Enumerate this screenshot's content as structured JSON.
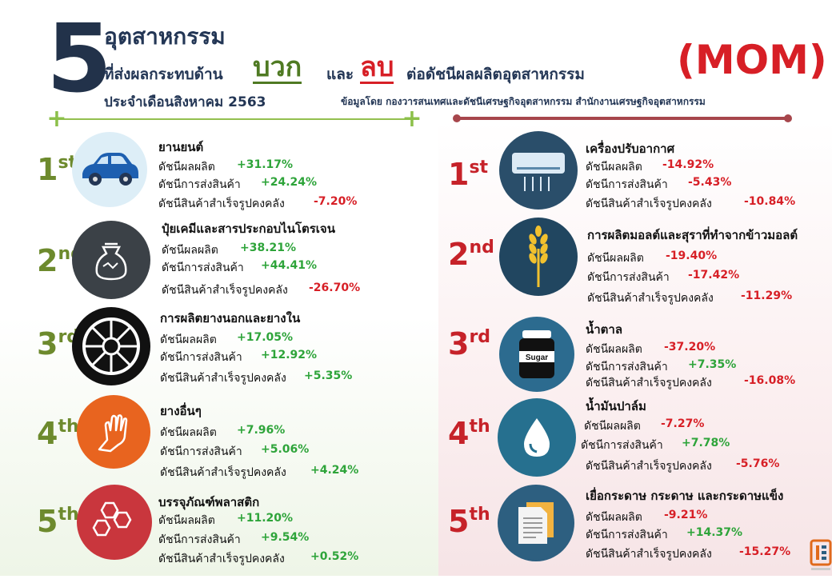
{
  "header": {
    "big_number": "5",
    "title_line1": "อุตสาหกรรม",
    "title_line2a": "ที่ส่งผลกระทบด้าน",
    "positive_word": "บวก",
    "and_word": "และ",
    "negative_word": "ลบ",
    "title_line2b": "ต่อดัชนีผลผลิตอุตสาหกรรม",
    "title_line3": "ประจำเดือนสิงหาคม  2563",
    "mom": "(MOM)",
    "source": "ข้อมูลโดย กองวารสนเทศและดัชนีเศรษฐกิจอุตสาหกรรม สำนักงานเศรษฐกิจอุตสาหกรรม"
  },
  "colors": {
    "positive": "#2ea43a",
    "negative": "#d71f26",
    "navy": "#233655"
  },
  "positive": [
    {
      "rank_num": "1",
      "rank_suffix": "st",
      "name": "ยานยนต์",
      "icon": "car-icon",
      "l1": "ดัชนีผลผลิต",
      "v1": "+31.17%",
      "l2": "ดัชนีการส่งสินค้า",
      "v2": "+24.24%",
      "l3": "ดัชนีสินค้าสำเร็จรูปคงคลัง",
      "v3": "-7.20%"
    },
    {
      "rank_num": "2",
      "rank_suffix": "nd",
      "name": "ปุ๋ยเคมีและสารประกอบไนโตรเจน",
      "icon": "fertilizer-bag-icon",
      "l1": "ดัชนีผลผลิต",
      "v1": "+38.21%",
      "l2": "ดัชนีการส่งสินค้า",
      "v2": "+44.41%",
      "l3": "ดัชนีสินค้าสำเร็จรูปคงคลัง",
      "v3": "-26.70%"
    },
    {
      "rank_num": "3",
      "rank_suffix": "rd",
      "name": "การผลิตยางนอกและยางใน",
      "icon": "tire-icon",
      "l1": "ดัชนีผลผลิต",
      "v1": "+17.05%",
      "l2": "ดัชนีการส่งสินค้า",
      "v2": "+12.92%",
      "l3": "ดัชนีสินค้าสำเร็จรูปคงคลัง",
      "v3": "+5.35%"
    },
    {
      "rank_num": "4",
      "rank_suffix": "th",
      "name": "ยางอื่นๆ",
      "icon": "rubber-glove-icon",
      "l1": "ดัชนีผลผลิต",
      "v1": "+7.96%",
      "l2": "ดัชนีการส่งสินค้า",
      "v2": "+5.06%",
      "l3": "ดัชนีสินค้าสำเร็จรูปคงคลัง",
      "v3": "+4.24%"
    },
    {
      "rank_num": "5",
      "rank_suffix": "th",
      "name": "บรรจุภัณฑ์พลาสติก",
      "icon": "hexagons-icon",
      "l1": "ดัชนีผลผลิต",
      "v1": "+11.20%",
      "l2": "ดัชนีการส่งสินค้า",
      "v2": "+9.54%",
      "l3": "ดัชนีสินค้าสำเร็จรูปคงคลัง",
      "v3": "+0.52%"
    }
  ],
  "negative": [
    {
      "rank_num": "1",
      "rank_suffix": "st",
      "name": "เครื่องปรับอากาศ",
      "icon": "air-conditioner-icon",
      "l1": "ดัชนีผลผลิต",
      "v1": "-14.92%",
      "l2": "ดัชนีการส่งสินค้า",
      "v2": "-5.43%",
      "l3": "ดัชนีสินค้าสำเร็จรูปคงคลัง",
      "v3": "-10.84%"
    },
    {
      "rank_num": "2",
      "rank_suffix": "nd",
      "name": "การผลิตมอลต์และสุราที่ทำจากข้าวมอลต์",
      "icon": "barley-icon",
      "l1": "ดัชนีผลผลิต",
      "v1": "-19.40%",
      "l2": "ดัชนีการส่งสินค้า",
      "v2": "-17.42%",
      "l3": "ดัชนีสินค้าสำเร็จรูปคงคลัง",
      "v3": "-11.29%"
    },
    {
      "rank_num": "3",
      "rank_suffix": "rd",
      "name": "น้ำตาล",
      "icon": "sugar-jar-icon",
      "icon_text": "Sugar",
      "l1": "ดัชนีผลผลิต",
      "v1": "-37.20%",
      "l2": "ดัชนีการส่งสินค้า",
      "v2": "+7.35%",
      "l3": "ดัชนีสินค้าสำเร็จรูปคงคลัง",
      "v3": "-16.08%"
    },
    {
      "rank_num": "4",
      "rank_suffix": "th",
      "name": "น้ำมันปาล์ม",
      "icon": "oil-drop-icon",
      "l1": "ดัชนีผลผลิต",
      "v1": "-7.27%",
      "l2": "ดัชนีการส่งสินค้า",
      "v2": "+7.78%",
      "l3": "ดัชนีสินค้าสำเร็จรูปคงคลัง",
      "v3": "-5.76%"
    },
    {
      "rank_num": "5",
      "rank_suffix": "th",
      "name": "เยื่อกระดาษ กระดาษ และกระดาษแข็ง",
      "icon": "paper-documents-icon",
      "l1": "ดัชนีผลผลิต",
      "v1": "-9.21%",
      "l2": "ดัชนีการส่งสินค้า",
      "v2": "+14.37%",
      "l3": "ดัชนีสินค้าสำเร็จรูปคงคลัง",
      "v3": "-15.27%"
    }
  ]
}
